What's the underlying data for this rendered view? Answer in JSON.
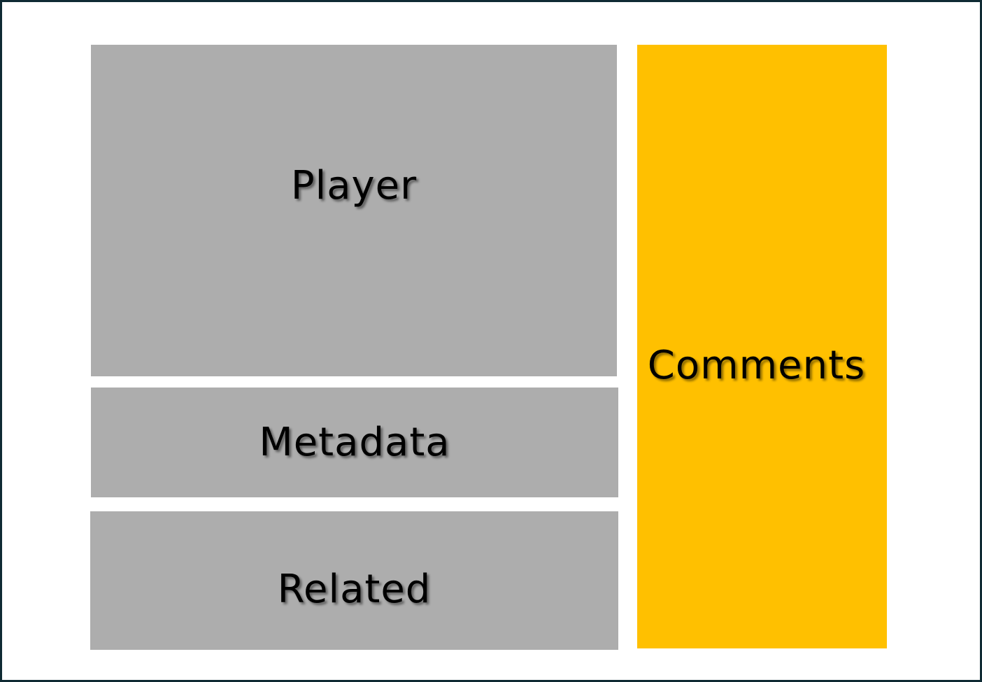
{
  "layout": {
    "player": {
      "label": "Player",
      "color": "#adadad"
    },
    "metadata": {
      "label": "Metadata",
      "color": "#adadad"
    },
    "related": {
      "label": "Related",
      "color": "#adadad"
    },
    "comments": {
      "label": "Comments",
      "color": "#ffc000"
    }
  },
  "colors": {
    "border": "#0f2a33",
    "background": "#ffffff",
    "gray_block": "#adadad",
    "highlight_block": "#ffc000"
  }
}
